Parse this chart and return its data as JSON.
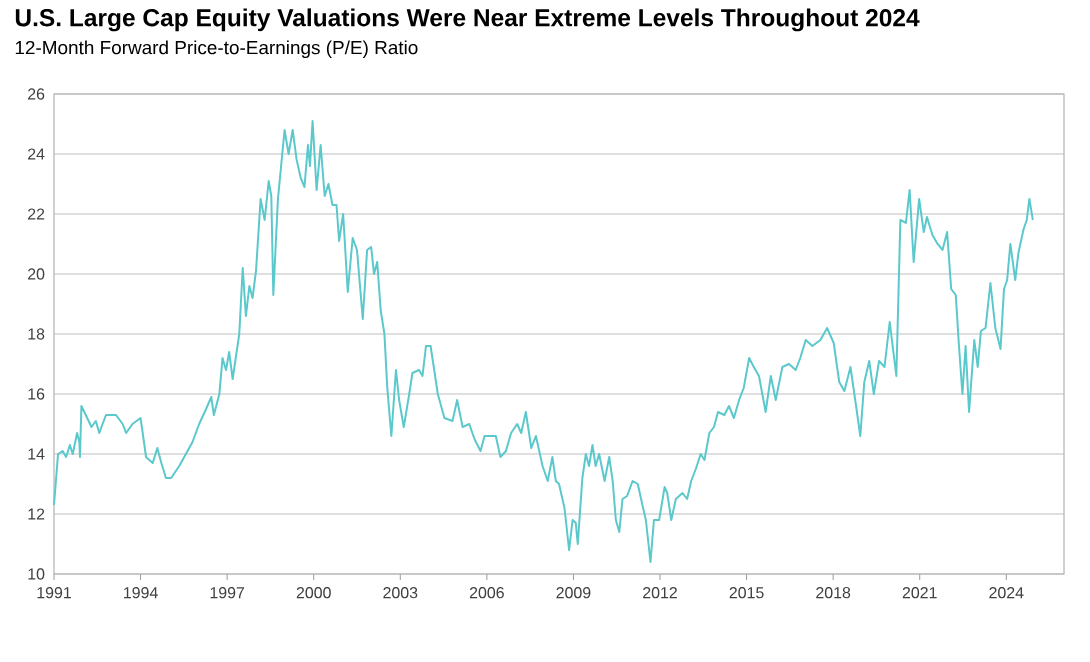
{
  "chart_data": {
    "type": "line",
    "title": "U.S. Large Cap Equity Valuations Were Near Extreme Levels Throughout 2024",
    "subtitle": "12-Month Forward Price-to-Earnings (P/E) Ratio",
    "x": [
      1991.0,
      1991.14,
      1991.3,
      1991.42,
      1991.55,
      1991.65,
      1991.8,
      1991.88,
      1991.9,
      1991.95,
      1992.1,
      1992.3,
      1992.45,
      1992.57,
      1992.8,
      1993.15,
      1993.38,
      1993.5,
      1993.72,
      1994.0,
      1994.19,
      1994.42,
      1994.58,
      1994.72,
      1994.88,
      1995.06,
      1995.34,
      1995.57,
      1995.8,
      1996.03,
      1996.27,
      1996.45,
      1996.54,
      1996.73,
      1996.84,
      1996.96,
      1997.07,
      1997.19,
      1997.42,
      1997.54,
      1997.65,
      1997.77,
      1997.88,
      1998.0,
      1998.16,
      1998.3,
      1998.44,
      1998.53,
      1998.6,
      1998.76,
      1998.99,
      1999.13,
      1999.27,
      1999.41,
      1999.55,
      1999.68,
      1999.8,
      1999.87,
      1999.96,
      2000.1,
      2000.24,
      2000.38,
      2000.51,
      2000.65,
      2000.79,
      2000.88,
      2001.02,
      2001.18,
      2001.35,
      2001.5,
      2001.7,
      2001.85,
      2001.99,
      2002.09,
      2002.2,
      2002.32,
      2002.45,
      2002.55,
      2002.69,
      2002.85,
      2002.96,
      2003.12,
      2003.31,
      2003.42,
      2003.65,
      2003.77,
      2003.89,
      2004.05,
      2004.16,
      2004.3,
      2004.53,
      2004.81,
      2004.97,
      2005.16,
      2005.39,
      2005.57,
      2005.78,
      2005.92,
      2006.15,
      2006.31,
      2006.47,
      2006.66,
      2006.84,
      2007.05,
      2007.19,
      2007.35,
      2007.54,
      2007.7,
      2007.93,
      2008.11,
      2008.27,
      2008.39,
      2008.5,
      2008.69,
      2008.85,
      2008.97,
      2009.08,
      2009.15,
      2009.31,
      2009.43,
      2009.54,
      2009.66,
      2009.77,
      2009.89,
      2010.08,
      2010.24,
      2010.36,
      2010.47,
      2010.59,
      2010.7,
      2010.86,
      2011.05,
      2011.23,
      2011.39,
      2011.51,
      2011.67,
      2011.79,
      2011.97,
      2012.16,
      2012.25,
      2012.39,
      2012.55,
      2012.78,
      2012.94,
      2013.08,
      2013.24,
      2013.41,
      2013.54,
      2013.71,
      2013.87,
      2014.01,
      2014.23,
      2014.39,
      2014.56,
      2014.74,
      2014.9,
      2015.09,
      2015.25,
      2015.43,
      2015.66,
      2015.84,
      2016.01,
      2016.24,
      2016.47,
      2016.7,
      2016.86,
      2017.05,
      2017.28,
      2017.56,
      2017.79,
      2018.02,
      2018.21,
      2018.39,
      2018.6,
      2018.78,
      2018.94,
      2019.08,
      2019.25,
      2019.41,
      2019.59,
      2019.78,
      2019.96,
      2020.19,
      2020.33,
      2020.52,
      2020.65,
      2020.79,
      2020.98,
      2021.14,
      2021.25,
      2021.44,
      2021.62,
      2021.79,
      2021.95,
      2022.09,
      2022.25,
      2022.36,
      2022.48,
      2022.59,
      2022.71,
      2022.89,
      2023.01,
      2023.12,
      2023.28,
      2023.45,
      2023.62,
      2023.8,
      2023.92,
      2024.03,
      2024.14,
      2024.31,
      2024.42,
      2024.6,
      2024.71,
      2024.8,
      2024.92
    ],
    "series": [
      {
        "color": "#5bc8cc",
        "values": [
          12.3,
          14.0,
          14.1,
          13.9,
          14.3,
          14.0,
          14.7,
          14.4,
          13.9,
          15.6,
          15.3,
          14.9,
          15.1,
          14.7,
          15.3,
          15.3,
          15.0,
          14.7,
          15.0,
          15.2,
          13.9,
          13.7,
          14.2,
          13.7,
          13.2,
          13.2,
          13.6,
          14.0,
          14.4,
          15.0,
          15.5,
          15.9,
          15.3,
          16.0,
          17.2,
          16.8,
          17.4,
          16.5,
          18.0,
          20.2,
          18.6,
          19.6,
          19.2,
          20.1,
          22.5,
          21.8,
          23.1,
          22.6,
          19.3,
          22.5,
          24.8,
          24.0,
          24.8,
          23.8,
          23.2,
          22.9,
          24.3,
          23.6,
          25.1,
          22.8,
          24.3,
          22.6,
          23.0,
          22.3,
          22.3,
          21.1,
          22.0,
          19.4,
          21.2,
          20.8,
          18.5,
          20.8,
          20.9,
          20.0,
          20.4,
          18.8,
          18.0,
          16.2,
          14.6,
          16.8,
          15.8,
          14.9,
          16.0,
          16.7,
          16.8,
          16.6,
          17.6,
          17.6,
          16.9,
          16.0,
          15.2,
          15.1,
          15.8,
          14.9,
          15.0,
          14.5,
          14.1,
          14.6,
          14.6,
          14.6,
          13.9,
          14.1,
          14.7,
          15.0,
          14.7,
          15.4,
          14.2,
          14.6,
          13.6,
          13.1,
          13.9,
          13.1,
          13.0,
          12.2,
          10.8,
          11.8,
          11.7,
          11.0,
          13.2,
          14.0,
          13.6,
          14.3,
          13.6,
          14.0,
          13.1,
          13.9,
          13.1,
          11.8,
          11.4,
          12.5,
          12.6,
          13.1,
          13.0,
          12.3,
          11.8,
          10.4,
          11.8,
          11.8,
          12.9,
          12.7,
          11.8,
          12.5,
          12.7,
          12.5,
          13.1,
          13.5,
          14.0,
          13.8,
          14.7,
          14.9,
          15.4,
          15.3,
          15.6,
          15.2,
          15.8,
          16.2,
          17.2,
          16.9,
          16.6,
          15.4,
          16.6,
          15.8,
          16.9,
          17.0,
          16.8,
          17.2,
          17.8,
          17.6,
          17.8,
          18.2,
          17.7,
          16.4,
          16.1,
          16.9,
          15.7,
          14.6,
          16.4,
          17.1,
          16.0,
          17.1,
          16.9,
          18.4,
          16.6,
          21.8,
          21.7,
          22.8,
          20.4,
          22.5,
          21.4,
          21.9,
          21.3,
          21.0,
          20.8,
          21.4,
          19.5,
          19.3,
          17.6,
          16.0,
          17.6,
          15.4,
          17.8,
          16.9,
          18.1,
          18.2,
          19.7,
          18.2,
          17.5,
          19.5,
          19.8,
          21.0,
          19.8,
          20.7,
          21.5,
          21.8,
          22.5,
          21.8
        ]
      }
    ],
    "xlim": [
      1991,
      2026
    ],
    "xticks": [
      1991,
      1994,
      1997,
      2000,
      2003,
      2006,
      2009,
      2012,
      2015,
      2018,
      2021,
      2024
    ],
    "ylim": [
      10,
      26
    ],
    "yticks": [
      10,
      12,
      14,
      16,
      18,
      20,
      22,
      24,
      26
    ],
    "grid": "y"
  }
}
